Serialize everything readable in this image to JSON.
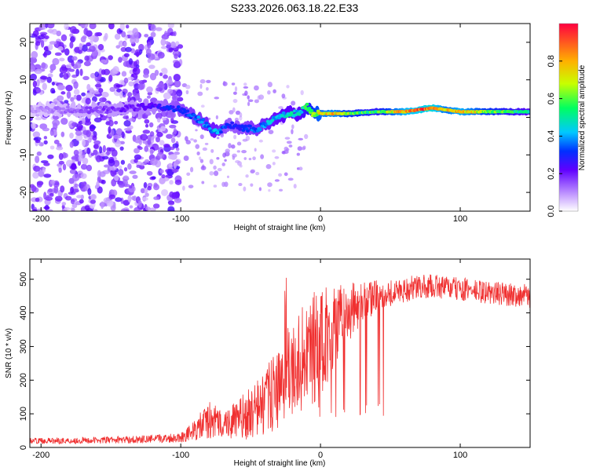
{
  "title": "S233.2026.063.18.22.E33",
  "chart_data": [
    {
      "type": "heatmap",
      "name": "spectrogram",
      "xlabel": "Height of straight line (km)",
      "ylabel": "Frequency (Hz)",
      "xlim": [
        -208,
        150
      ],
      "ylim": [
        -25,
        25
      ],
      "xticks": [
        -200,
        -100,
        0,
        100
      ],
      "xtick_labels": [
        "-200",
        "-100",
        "0",
        "100"
      ],
      "yticks": [
        -20,
        -10,
        0,
        10,
        20
      ],
      "ytick_labels": [
        "-20",
        "-10",
        "0",
        "10",
        "20"
      ],
      "colorbar": {
        "label": "Normalized spectral amplitude",
        "range": [
          0,
          1
        ],
        "ticks": [
          0,
          0.2,
          0.4,
          0.6,
          0.8
        ],
        "tick_labels": [
          "0.0",
          "0.2",
          "0.4",
          "0.6",
          "0.8"
        ]
      },
      "ridge": {
        "x": [
          -208,
          -180,
          -150,
          -120,
          -100,
          -85,
          -75,
          -65,
          -55,
          -45,
          -35,
          -25,
          -15,
          -10,
          -5,
          0,
          10,
          20,
          40,
          60,
          80,
          90,
          100,
          120,
          150
        ],
        "frequency": [
          2,
          2,
          2,
          3,
          2,
          -1,
          -4,
          -2,
          -3,
          -3,
          -1,
          1,
          1,
          3,
          1,
          1,
          1,
          1,
          1.5,
          1.5,
          2.5,
          2,
          1.5,
          1.5,
          1.5
        ],
        "amplitude": [
          0.1,
          0.15,
          0.2,
          0.25,
          0.35,
          0.4,
          0.45,
          0.3,
          0.35,
          0.4,
          0.45,
          0.5,
          0.5,
          0.6,
          0.7,
          0.8,
          0.85,
          0.7,
          0.6,
          0.9,
          1.0,
          0.8,
          0.9,
          0.7,
          0.5
        ]
      }
    },
    {
      "type": "line",
      "name": "snr",
      "xlabel": "Height of straight line (km)",
      "ylabel": "SNR (10 * v/v)",
      "xlim": [
        -208,
        150
      ],
      "ylim": [
        0,
        560
      ],
      "xticks": [
        -200,
        -100,
        0,
        100
      ],
      "xtick_labels": [
        "-200",
        "-100",
        "0",
        "100"
      ],
      "yticks": [
        0,
        100,
        200,
        300,
        400,
        500
      ],
      "ytick_labels": [
        "0",
        "100",
        "200",
        "300",
        "400",
        "500"
      ],
      "series": [
        {
          "name": "SNR",
          "color": "#f03030",
          "x": [
            -208,
            -180,
            -150,
            -120,
            -100,
            -90,
            -80,
            -70,
            -60,
            -50,
            -40,
            -30,
            -20,
            -10,
            0,
            10,
            20,
            30,
            40,
            50,
            60,
            80,
            100,
            120,
            150
          ],
          "y": [
            20,
            20,
            22,
            25,
            30,
            50,
            80,
            70,
            80,
            100,
            130,
            180,
            240,
            280,
            320,
            360,
            400,
            430,
            450,
            460,
            470,
            480,
            470,
            460,
            450
          ],
          "jitter": [
            8,
            10,
            10,
            12,
            15,
            30,
            60,
            40,
            60,
            80,
            100,
            120,
            150,
            160,
            180,
            120,
            90,
            60,
            50,
            40,
            40,
            35,
            35,
            35,
            35
          ]
        }
      ]
    }
  ]
}
